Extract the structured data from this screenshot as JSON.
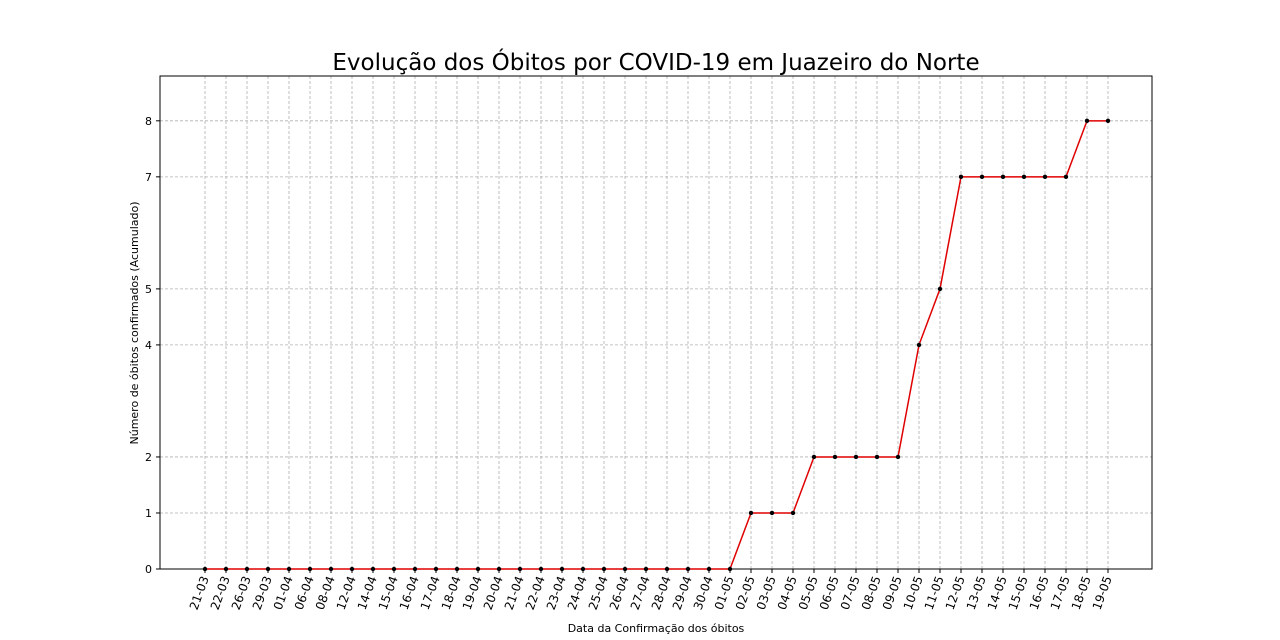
{
  "chart_data": {
    "type": "line",
    "title": "Evolução dos Óbitos por COVID-19 em Juazeiro do Norte",
    "xlabel": "Data da Confirmação dos óbitos",
    "ylabel": "Número de óbitos confirmados (Acumulado)",
    "categories": [
      "21-03",
      "22-03",
      "26-03",
      "29-03",
      "01-04",
      "06-04",
      "08-04",
      "12-04",
      "14-04",
      "15-04",
      "16-04",
      "17-04",
      "18-04",
      "19-04",
      "20-04",
      "21-04",
      "22-04",
      "23-04",
      "24-04",
      "25-04",
      "26-04",
      "27-04",
      "28-04",
      "29-04",
      "30-04",
      "01-05",
      "02-05",
      "03-05",
      "04-05",
      "05-05",
      "06-05",
      "07-05",
      "08-05",
      "09-05",
      "10-05",
      "11-05",
      "12-05",
      "13-05",
      "14-05",
      "15-05",
      "16-05",
      "17-05",
      "18-05",
      "19-05"
    ],
    "series": [
      {
        "values": [
          0,
          0,
          0,
          0,
          0,
          0,
          0,
          0,
          0,
          0,
          0,
          0,
          0,
          0,
          0,
          0,
          0,
          0,
          0,
          0,
          0,
          0,
          0,
          0,
          0,
          0,
          1,
          1,
          1,
          2,
          2,
          2,
          2,
          2,
          4,
          5,
          7,
          7,
          7,
          7,
          7,
          7,
          8,
          8
        ]
      }
    ],
    "yticks": [
      0,
      1,
      2,
      4,
      5,
      7,
      8
    ],
    "ylim": [
      0,
      8.8
    ],
    "grid": true,
    "line_color": "#e00000",
    "marker_color": "#000000"
  }
}
